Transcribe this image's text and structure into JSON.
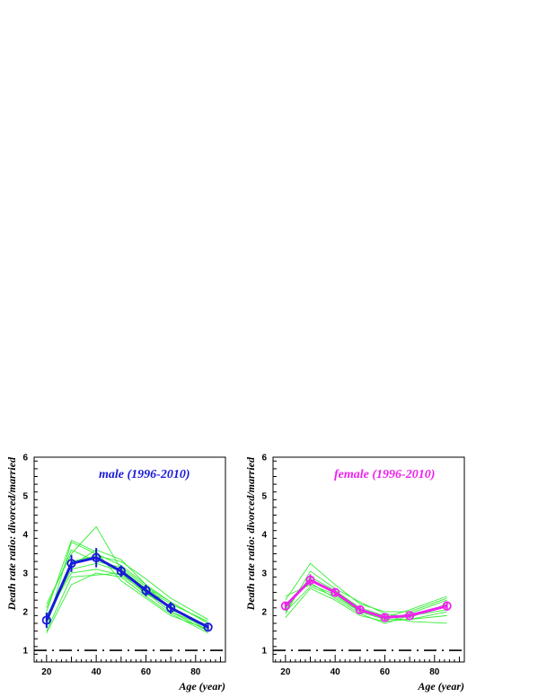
{
  "chart_data": [
    {
      "type": "line",
      "title": "male (1996-2010)",
      "title_color": "#1a1adb",
      "xlabel": "Age (year)",
      "ylabel": "Death rate ratio: divorced/married",
      "xlim": [
        15,
        92
      ],
      "ylim": [
        0.7,
        6
      ],
      "x_ticks": [
        20,
        40,
        60,
        80
      ],
      "y_ticks": [
        1,
        2,
        3,
        4,
        5,
        6
      ],
      "grid": false,
      "main_series": {
        "color": "#1a1adb",
        "x": [
          20,
          30,
          40,
          50,
          60,
          70,
          85
        ],
        "y": [
          1.78,
          3.25,
          3.4,
          3.05,
          2.55,
          2.1,
          1.6
        ],
        "err": [
          0.2,
          0.22,
          0.25,
          0.15,
          0.15,
          0.15,
          0.07
        ]
      },
      "background_series_color": "#33ee33",
      "background_series": [
        {
          "x": [
            20,
            30,
            40,
            50,
            60,
            70,
            85
          ],
          "y": [
            1.6,
            3.8,
            3.5,
            3.2,
            2.7,
            2.25,
            1.7
          ]
        },
        {
          "x": [
            20,
            30,
            40,
            50,
            60,
            70,
            85
          ],
          "y": [
            1.9,
            3.0,
            3.1,
            2.95,
            2.5,
            2.0,
            1.5
          ]
        },
        {
          "x": [
            20,
            30,
            40,
            50,
            60,
            70,
            85
          ],
          "y": [
            2.2,
            3.5,
            4.2,
            3.1,
            2.6,
            2.2,
            1.75
          ]
        },
        {
          "x": [
            20,
            30,
            40,
            50,
            60,
            70,
            85
          ],
          "y": [
            1.45,
            2.7,
            3.0,
            2.9,
            2.4,
            1.95,
            1.45
          ]
        },
        {
          "x": [
            20,
            30,
            40,
            50,
            60,
            70,
            85
          ],
          "y": [
            1.8,
            3.3,
            3.45,
            3.3,
            2.85,
            2.35,
            1.8
          ]
        },
        {
          "x": [
            20,
            30,
            40,
            50,
            60,
            70,
            85
          ],
          "y": [
            2.0,
            3.85,
            3.55,
            2.8,
            2.35,
            1.9,
            1.55
          ]
        },
        {
          "x": [
            20,
            30,
            40,
            50,
            60,
            70,
            85
          ],
          "y": [
            1.7,
            3.2,
            3.6,
            3.35,
            2.7,
            2.05,
            1.65
          ]
        },
        {
          "x": [
            20,
            30,
            40,
            50,
            60,
            70,
            85
          ],
          "y": [
            1.5,
            2.9,
            2.95,
            3.0,
            2.45,
            2.15,
            1.5
          ]
        },
        {
          "x": [
            20,
            30,
            40,
            50,
            60,
            70,
            85
          ],
          "y": [
            2.1,
            3.6,
            3.3,
            3.15,
            2.65,
            2.25,
            1.7
          ]
        },
        {
          "x": [
            20,
            30,
            40,
            50,
            60,
            70,
            85
          ],
          "y": [
            1.85,
            3.1,
            3.25,
            3.05,
            2.5,
            2.0,
            1.6
          ]
        }
      ],
      "reference_line": {
        "y": 1,
        "style": "dash-dot"
      }
    },
    {
      "type": "line",
      "title": "female (1996-2010)",
      "title_color": "#ee22ee",
      "xlabel": "Age (year)",
      "ylabel": "Death rate ratio: divorced/married",
      "xlim": [
        15,
        92
      ],
      "ylim": [
        0.7,
        6
      ],
      "x_ticks": [
        20,
        40,
        60,
        80
      ],
      "y_ticks": [
        1,
        2,
        3,
        4,
        5,
        6
      ],
      "grid": false,
      "main_series": {
        "color": "#ee22ee",
        "x": [
          20,
          30,
          40,
          50,
          60,
          70,
          85
        ],
        "y": [
          2.15,
          2.82,
          2.5,
          2.05,
          1.85,
          1.9,
          2.15
        ],
        "err": [
          0.1,
          0.15,
          0.08,
          0.1,
          0.08,
          0.06,
          0.12
        ]
      },
      "background_series_color": "#33ee33",
      "background_series": [
        {
          "x": [
            20,
            30,
            40,
            50,
            60,
            70,
            85
          ],
          "y": [
            2.3,
            3.25,
            2.7,
            2.2,
            2.0,
            2.0,
            2.35
          ]
        },
        {
          "x": [
            20,
            30,
            40,
            50,
            60,
            70,
            85
          ],
          "y": [
            1.85,
            2.6,
            2.3,
            1.9,
            1.75,
            1.8,
            2.0
          ]
        },
        {
          "x": [
            20,
            30,
            40,
            50,
            60,
            70,
            85
          ],
          "y": [
            2.05,
            2.9,
            2.55,
            2.1,
            1.9,
            1.75,
            1.7
          ]
        },
        {
          "x": [
            20,
            30,
            40,
            50,
            60,
            70,
            85
          ],
          "y": [
            2.4,
            2.7,
            2.45,
            2.0,
            1.8,
            1.95,
            2.3
          ]
        },
        {
          "x": [
            20,
            30,
            40,
            50,
            60,
            70,
            85
          ],
          "y": [
            1.95,
            3.05,
            2.6,
            2.25,
            1.95,
            1.85,
            2.2
          ]
        },
        {
          "x": [
            20,
            30,
            40,
            50,
            60,
            70,
            85
          ],
          "y": [
            2.2,
            2.75,
            2.35,
            1.95,
            1.7,
            1.9,
            2.05
          ]
        },
        {
          "x": [
            20,
            30,
            40,
            50,
            60,
            70,
            85
          ],
          "y": [
            2.1,
            2.85,
            2.5,
            2.05,
            1.85,
            2.05,
            2.4
          ]
        },
        {
          "x": [
            20,
            30,
            40,
            50,
            60,
            70,
            85
          ],
          "y": [
            2.0,
            2.65,
            2.4,
            2.0,
            1.8,
            1.8,
            1.9
          ]
        }
      ],
      "reference_line": {
        "y": 1,
        "style": "dash-dot"
      }
    }
  ]
}
